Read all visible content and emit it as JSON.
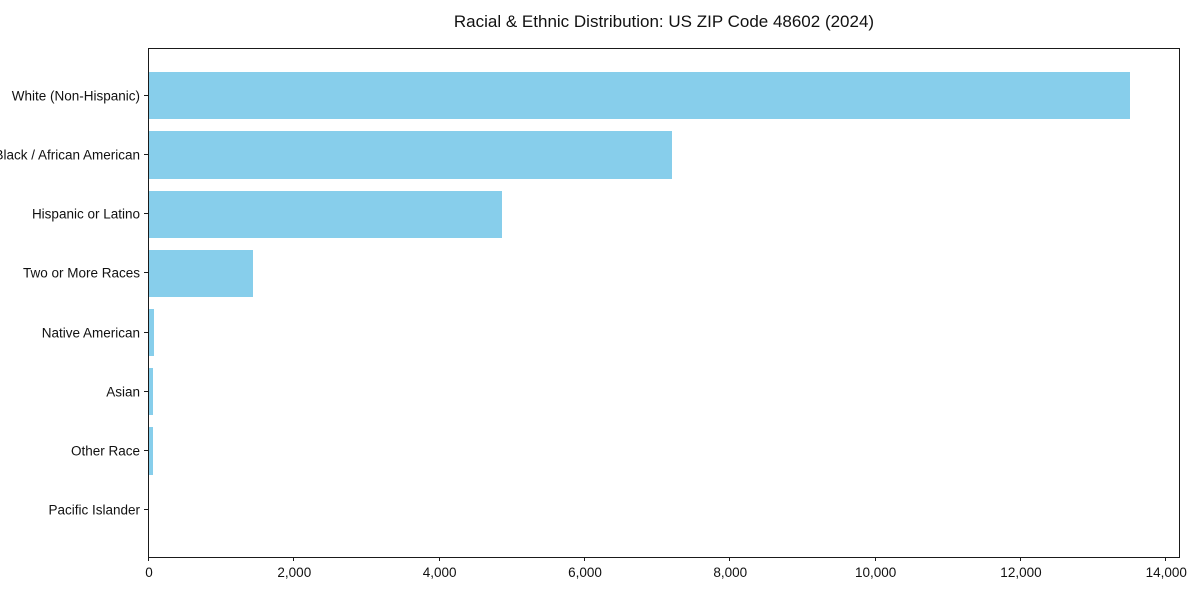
{
  "chart_data": {
    "type": "bar",
    "orientation": "horizontal",
    "title": "Racial & Ethnic Distribution: US ZIP Code 48602 (2024)",
    "categories": [
      "White (Non-Hispanic)",
      "Black / African American",
      "Hispanic or Latino",
      "Two or More Races",
      "Native American",
      "Asian",
      "Other Race",
      "Pacific Islander"
    ],
    "values": [
      13500,
      7200,
      4860,
      1430,
      65,
      50,
      60,
      0
    ],
    "title_position": "top-center",
    "xlabel": "",
    "ylabel": "",
    "xlim": [
      0,
      14175
    ],
    "x_ticks": [
      0,
      2000,
      4000,
      6000,
      8000,
      10000,
      12000,
      14000
    ],
    "x_tick_labels": [
      "0",
      "2,000",
      "4,000",
      "6,000",
      "8,000",
      "10,000",
      "12,000",
      "14,000"
    ],
    "bar_color": "#87CEEB",
    "axis_color": "#1a1a1a",
    "background_color": "#ffffff",
    "grid": false,
    "legend": null
  }
}
